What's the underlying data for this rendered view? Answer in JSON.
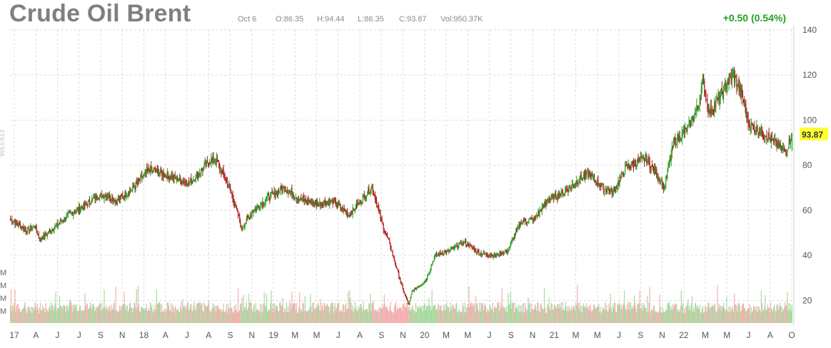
{
  "header": {
    "title": "Crude Oil Brent",
    "date": "Oct 6",
    "open": "O:86.35",
    "high": "H:94.44",
    "low": "L:86.35",
    "close": "C:93.87",
    "volume": "Vol:950.37K",
    "change": "+0.50 (0.54%)"
  },
  "watermark": "WEEKLY",
  "colors": {
    "up": "#2ca02c",
    "down": "#b22222",
    "vol_up": "#a6dba0",
    "vol_down": "#f4b0b0",
    "grid": "#dcdcdc",
    "price_tag": "#ffff33",
    "change": "#22a022"
  },
  "chart_data": {
    "type": "candlestick",
    "interval": "weekly",
    "ylim": [
      10,
      140
    ],
    "y_ticks": [
      20,
      40,
      60,
      80,
      100,
      120,
      140
    ],
    "last_price": 93.87,
    "x_ticks": [
      "17",
      "A",
      "J",
      "J",
      "S",
      "N",
      "18",
      "A",
      "J",
      "A",
      "S",
      "N",
      "19",
      "M",
      "M",
      "J",
      "A",
      "S",
      "N",
      "20",
      "M",
      "M",
      "J",
      "S",
      "N",
      "21",
      "M",
      "M",
      "J",
      "S",
      "N",
      "22",
      "M",
      "M",
      "J",
      "A",
      "O"
    ],
    "volume_axis_labels": [
      "M",
      "M",
      "M",
      "M"
    ],
    "grid": true,
    "anchors": [
      [
        0,
        56
      ],
      [
        14,
        53
      ],
      [
        20,
        51
      ],
      [
        32,
        53
      ],
      [
        38,
        47
      ],
      [
        46,
        49
      ],
      [
        62,
        54
      ],
      [
        76,
        58
      ],
      [
        96,
        62
      ],
      [
        112,
        66
      ],
      [
        126,
        67
      ],
      [
        138,
        64
      ],
      [
        160,
        70
      ],
      [
        180,
        78
      ],
      [
        200,
        76
      ],
      [
        216,
        74
      ],
      [
        232,
        72
      ],
      [
        260,
        82
      ],
      [
        268,
        82
      ],
      [
        286,
        69
      ],
      [
        296,
        58
      ],
      [
        300,
        52
      ],
      [
        316,
        60
      ],
      [
        336,
        66
      ],
      [
        356,
        70
      ],
      [
        376,
        65
      ],
      [
        400,
        63
      ],
      [
        420,
        64
      ],
      [
        440,
        58
      ],
      [
        460,
        66
      ],
      [
        470,
        71
      ],
      [
        484,
        53
      ],
      [
        492,
        46
      ],
      [
        510,
        25
      ],
      [
        518,
        18
      ],
      [
        522,
        24
      ],
      [
        540,
        29
      ],
      [
        552,
        40
      ],
      [
        570,
        42
      ],
      [
        590,
        46
      ],
      [
        610,
        41
      ],
      [
        630,
        40
      ],
      [
        646,
        42
      ],
      [
        664,
        55
      ],
      [
        680,
        56
      ],
      [
        700,
        65
      ],
      [
        716,
        67
      ],
      [
        740,
        74
      ],
      [
        752,
        76
      ],
      [
        770,
        70
      ],
      [
        784,
        68
      ],
      [
        800,
        79
      ],
      [
        826,
        83
      ],
      [
        840,
        76
      ],
      [
        850,
        70
      ],
      [
        862,
        90
      ],
      [
        880,
        96
      ],
      [
        894,
        106
      ],
      [
        900,
        118
      ],
      [
        908,
        103
      ],
      [
        920,
        109
      ],
      [
        932,
        117
      ],
      [
        940,
        120
      ],
      [
        952,
        110
      ],
      [
        960,
        98
      ],
      [
        980,
        94
      ],
      [
        1000,
        88
      ],
      [
        1008,
        86
      ],
      [
        1016,
        94
      ]
    ],
    "last_candle": {
      "open": 86.35,
      "high": 94.44,
      "low": 86.35,
      "close": 93.87
    }
  }
}
